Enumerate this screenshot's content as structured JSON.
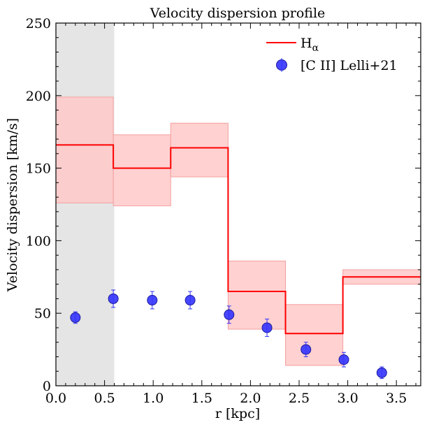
{
  "chart_data": {
    "type": "step+scatter",
    "title": "Velocity dispersion profile",
    "xlabel": "r [kpc]",
    "ylabel": "Velocity dispersion [km/s]",
    "xlim": [
      0.0,
      3.75
    ],
    "ylim": [
      0,
      250
    ],
    "x_ticks": [
      "0.0",
      "0.5",
      "1.0",
      "1.5",
      "2.0",
      "2.5",
      "3.0",
      "3.5"
    ],
    "x_tick_values": [
      0.0,
      0.5,
      1.0,
      1.5,
      2.0,
      2.5,
      3.0,
      3.5
    ],
    "y_ticks": [
      "0",
      "50",
      "100",
      "150",
      "200",
      "250"
    ],
    "y_tick_values": [
      0,
      50,
      100,
      150,
      200,
      250
    ],
    "shaded_region": {
      "x0": 0.0,
      "x1": 0.6,
      "color": "#e5e5e5"
    },
    "halpha": {
      "label_main": "H",
      "label_sub": "α",
      "color": "#ff0000",
      "band_color": "#ffc9c9",
      "bins": [
        {
          "x0": 0.0,
          "x1": 0.59,
          "value": 166,
          "low": 126,
          "high": 199
        },
        {
          "x0": 0.59,
          "x1": 1.18,
          "value": 150,
          "low": 124,
          "high": 173
        },
        {
          "x0": 1.18,
          "x1": 1.77,
          "value": 164,
          "low": 144,
          "high": 181
        },
        {
          "x0": 1.77,
          "x1": 2.36,
          "value": 65,
          "low": 39,
          "high": 86
        },
        {
          "x0": 2.36,
          "x1": 2.95,
          "value": 36,
          "low": 14,
          "high": 56
        },
        {
          "x0": 2.95,
          "x1": 3.75,
          "value": 75,
          "low": 70,
          "high": 80
        }
      ]
    },
    "cii": {
      "label": "[C II] Lelli+21",
      "color": "#3333ff",
      "points": [
        {
          "x": 0.2,
          "y": 47,
          "err": 4
        },
        {
          "x": 0.59,
          "y": 60,
          "err": 6
        },
        {
          "x": 0.99,
          "y": 59,
          "err": 6
        },
        {
          "x": 1.38,
          "y": 59,
          "err": 6
        },
        {
          "x": 1.78,
          "y": 49,
          "err": 6
        },
        {
          "x": 2.17,
          "y": 40,
          "err": 6
        },
        {
          "x": 2.57,
          "y": 25,
          "err": 5
        },
        {
          "x": 2.96,
          "y": 18,
          "err": 5
        },
        {
          "x": 3.35,
          "y": 9,
          "err": 4
        }
      ]
    },
    "legend_position": "top-right"
  }
}
